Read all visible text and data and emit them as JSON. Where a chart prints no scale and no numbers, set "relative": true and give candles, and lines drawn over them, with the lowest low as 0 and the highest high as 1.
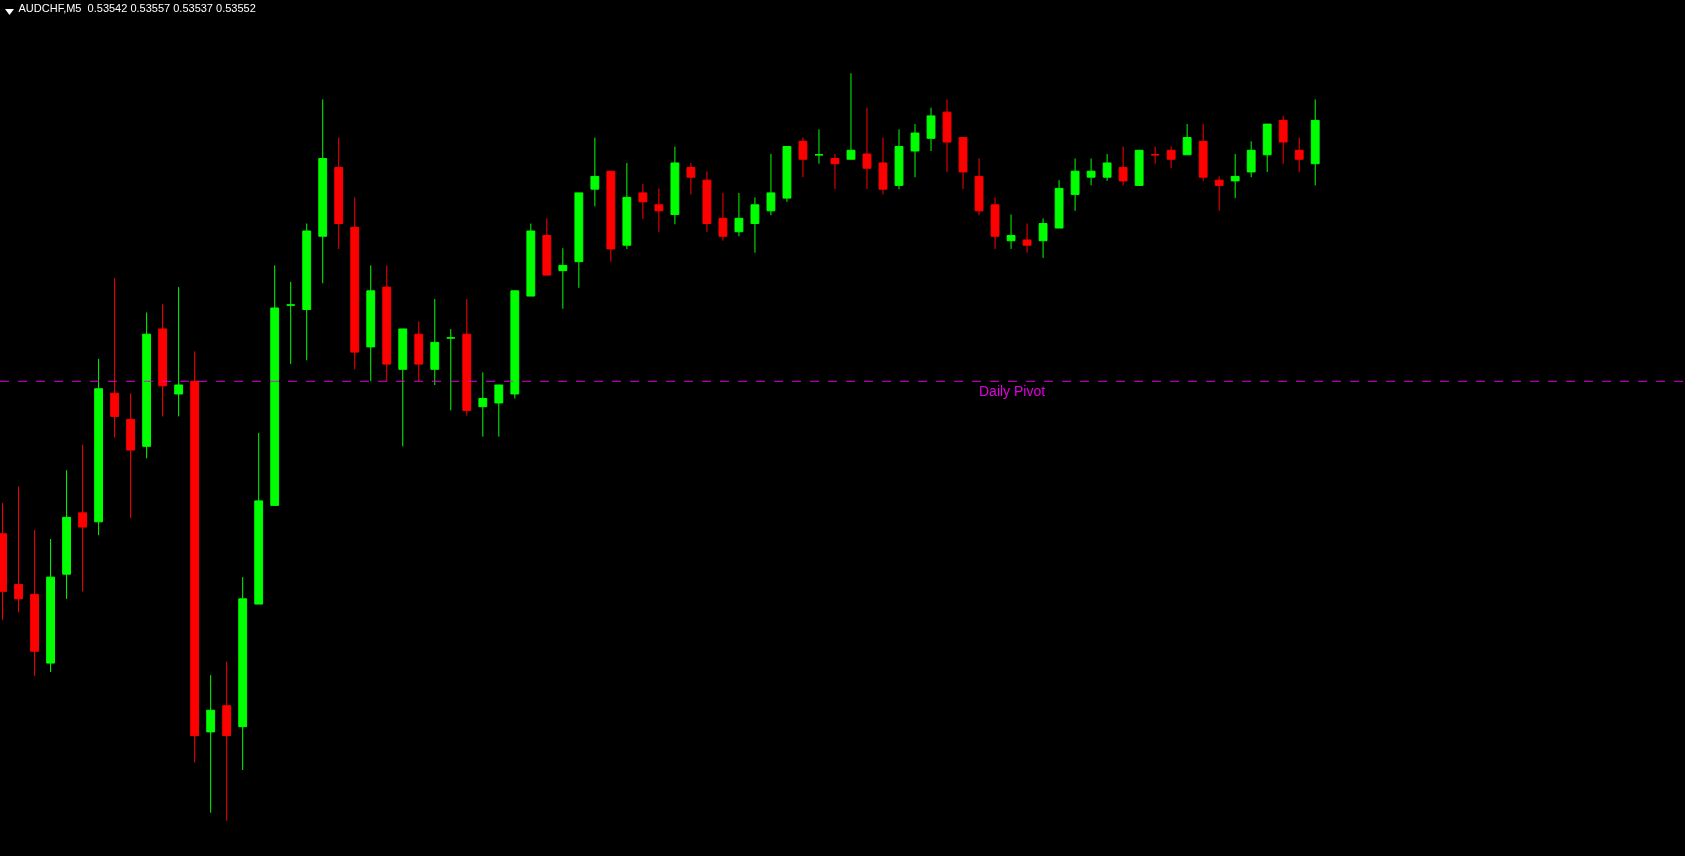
{
  "chart_data": {
    "type": "candlestick",
    "title": "AUDCHF,M5  0.53542 0.53557 0.53537 0.53552",
    "relative": true,
    "categories": [
      null,
      null,
      null,
      null,
      null,
      null,
      null,
      null,
      null,
      null,
      null,
      null,
      null,
      null,
      null,
      null,
      null,
      null,
      null,
      null,
      null,
      null,
      null,
      null,
      null,
      null,
      null,
      null,
      null,
      null,
      null,
      null,
      null,
      null,
      null,
      null,
      null,
      null,
      null,
      null,
      null,
      null,
      null,
      null,
      null,
      null,
      null,
      null,
      null,
      null,
      null,
      null,
      null,
      null,
      null,
      null,
      null,
      null,
      null,
      null,
      null,
      null,
      null,
      null,
      null,
      null,
      null,
      null,
      null,
      null,
      null,
      null,
      null,
      null,
      null,
      null,
      null,
      null,
      null,
      null,
      null,
      null,
      null
    ],
    "ohlc": [
      [
        0.384,
        0.425,
        0.269,
        0.307
      ],
      [
        0.316,
        0.447,
        0.279,
        0.297
      ],
      [
        0.303,
        0.389,
        0.194,
        0.227
      ],
      [
        0.211,
        0.377,
        0.199,
        0.326
      ],
      [
        0.33,
        0.469,
        0.297,
        0.406
      ],
      [
        0.412,
        0.503,
        0.307,
        0.393
      ],
      [
        0.4,
        0.618,
        0.382,
        0.578
      ],
      [
        0.572,
        0.726,
        0.513,
        0.541
      ],
      [
        0.537,
        0.572,
        0.405,
        0.496
      ],
      [
        0.501,
        0.68,
        0.485,
        0.651
      ],
      [
        0.658,
        0.691,
        0.541,
        0.582
      ],
      [
        0.571,
        0.714,
        0.541,
        0.583
      ],
      [
        0.588,
        0.628,
        0.078,
        0.114
      ],
      [
        0.119,
        0.195,
        0.011,
        0.148
      ],
      [
        0.154,
        0.213,
        0.0,
        0.114
      ],
      [
        0.126,
        0.326,
        0.068,
        0.297
      ],
      [
        0.29,
        0.519,
        0.29,
        0.428
      ],
      [
        0.422,
        0.743,
        0.422,
        0.686
      ],
      [
        0.69,
        0.721,
        0.611,
        0.69
      ],
      [
        0.684,
        0.799,
        0.616,
        0.789
      ],
      [
        0.782,
        0.965,
        0.719,
        0.886
      ],
      [
        0.874,
        0.914,
        0.765,
        0.799
      ],
      [
        0.794,
        0.834,
        0.604,
        0.627
      ],
      [
        0.634,
        0.743,
        0.588,
        0.709
      ],
      [
        0.714,
        0.743,
        0.588,
        0.611
      ],
      [
        0.604,
        0.658,
        0.501,
        0.658
      ],
      [
        0.651,
        0.668,
        0.588,
        0.611
      ],
      [
        0.604,
        0.698,
        0.583,
        0.64
      ],
      [
        0.646,
        0.658,
        0.549,
        0.646
      ],
      [
        0.651,
        0.698,
        0.542,
        0.549
      ],
      [
        0.554,
        0.6,
        0.514,
        0.565
      ],
      [
        0.559,
        0.583,
        0.514,
        0.583
      ],
      [
        0.571,
        0.709,
        0.565,
        0.709
      ],
      [
        0.702,
        0.799,
        0.702,
        0.789
      ],
      [
        0.783,
        0.806,
        0.73,
        0.73
      ],
      [
        0.736,
        0.766,
        0.685,
        0.743
      ],
      [
        0.748,
        0.84,
        0.713,
        0.84
      ],
      [
        0.845,
        0.914,
        0.822,
        0.862
      ],
      [
        0.869,
        0.869,
        0.748,
        0.765
      ],
      [
        0.77,
        0.88,
        0.765,
        0.834
      ],
      [
        0.84,
        0.852,
        0.805,
        0.828
      ],
      [
        0.824,
        0.846,
        0.788,
        0.816
      ],
      [
        0.811,
        0.902,
        0.798,
        0.88
      ],
      [
        0.874,
        0.88,
        0.838,
        0.861
      ],
      [
        0.857,
        0.869,
        0.788,
        0.799
      ],
      [
        0.806,
        0.84,
        0.776,
        0.782
      ],
      [
        0.788,
        0.84,
        0.782,
        0.806
      ],
      [
        0.799,
        0.834,
        0.76,
        0.824
      ],
      [
        0.816,
        0.892,
        0.81,
        0.84
      ],
      [
        0.833,
        0.902,
        0.828,
        0.902
      ],
      [
        0.909,
        0.914,
        0.861,
        0.885
      ],
      [
        0.891,
        0.925,
        0.879,
        0.891
      ],
      [
        0.886,
        0.892,
        0.845,
        0.879
      ],
      [
        0.885,
        1.0,
        0.885,
        0.897
      ],
      [
        0.892,
        0.954,
        0.845,
        0.873
      ],
      [
        0.88,
        0.914,
        0.838,
        0.845
      ],
      [
        0.85,
        0.925,
        0.845,
        0.902
      ],
      [
        0.896,
        0.932,
        0.861,
        0.92
      ],
      [
        0.913,
        0.954,
        0.896,
        0.943
      ],
      [
        0.948,
        0.965,
        0.868,
        0.908
      ],
      [
        0.914,
        0.914,
        0.845,
        0.868
      ],
      [
        0.862,
        0.886,
        0.81,
        0.816
      ],
      [
        0.824,
        0.834,
        0.765,
        0.782
      ],
      [
        0.776,
        0.811,
        0.765,
        0.783
      ],
      [
        0.777,
        0.799,
        0.76,
        0.77
      ],
      [
        0.776,
        0.806,
        0.753,
        0.799
      ],
      [
        0.793,
        0.857,
        0.793,
        0.846
      ],
      [
        0.838,
        0.886,
        0.816,
        0.869
      ],
      [
        0.861,
        0.886,
        0.85,
        0.869
      ],
      [
        0.861,
        0.892,
        0.856,
        0.88
      ],
      [
        0.874,
        0.902,
        0.85,
        0.856
      ],
      [
        0.85,
        0.897,
        0.85,
        0.897
      ],
      [
        0.891,
        0.902,
        0.879,
        0.891
      ],
      [
        0.897,
        0.902,
        0.873,
        0.885
      ],
      [
        0.891,
        0.932,
        0.891,
        0.914
      ],
      [
        0.909,
        0.932,
        0.856,
        0.861
      ],
      [
        0.857,
        0.862,
        0.816,
        0.85
      ],
      [
        0.856,
        0.892,
        0.833,
        0.862
      ],
      [
        0.868,
        0.909,
        0.861,
        0.897
      ],
      [
        0.891,
        0.932,
        0.868,
        0.932
      ],
      [
        0.937,
        0.943,
        0.879,
        0.908
      ],
      [
        0.897,
        0.914,
        0.868,
        0.885
      ],
      [
        0.879,
        0.965,
        0.85,
        0.937
      ]
    ],
    "ref_lines": [
      {
        "axis": "y",
        "value": 0.588,
        "label": "Daily Pivot",
        "color": "#e000e0",
        "line_style": "dashed"
      }
    ]
  }
}
